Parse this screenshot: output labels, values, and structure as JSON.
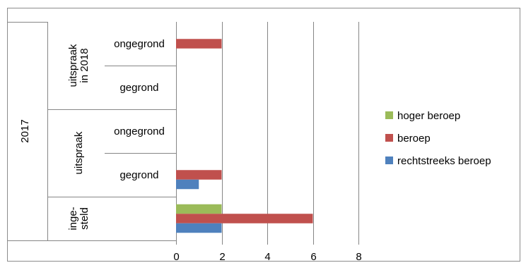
{
  "chart_data": {
    "type": "bar",
    "orientation": "horizontal",
    "outer_group": "2017",
    "groups": [
      {
        "label_lines": [
          "uitspraak",
          "in 2018"
        ],
        "categories": [
          "ongegrond",
          "gegrond"
        ]
      },
      {
        "label_lines": [
          "uitspraak"
        ],
        "categories": [
          "ongegrond",
          "gegrond"
        ]
      },
      {
        "label_lines": [
          "inge-",
          "steld"
        ],
        "categories": [
          ""
        ]
      }
    ],
    "categories": [
      "uitspraak in 2018 - ongegrond",
      "uitspraak in 2018 - gegrond",
      "uitspraak - ongegrond",
      "uitspraak - gegrond",
      "ingesteld"
    ],
    "series": [
      {
        "name": "hoger beroep",
        "color": "#9BBB59",
        "values": [
          0,
          0,
          0,
          0,
          2
        ]
      },
      {
        "name": "beroep",
        "color": "#C0504D",
        "values": [
          2,
          0,
          0,
          2,
          6
        ]
      },
      {
        "name": "rechtstreeks beroep",
        "color": "#4F81BD",
        "values": [
          0,
          0,
          0,
          1,
          2
        ]
      }
    ],
    "x_ticks": [
      "0",
      "2",
      "4",
      "6",
      "8"
    ],
    "xlim": [
      0,
      8
    ],
    "grid": true,
    "legend_position": "right"
  }
}
